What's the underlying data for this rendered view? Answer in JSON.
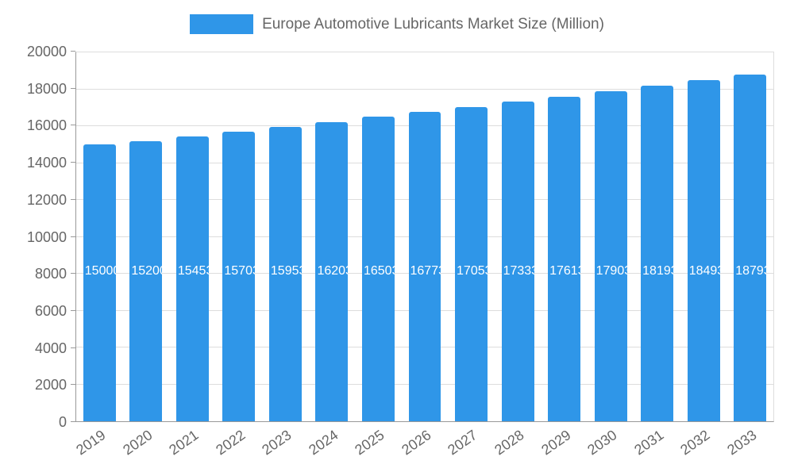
{
  "colors": {
    "bar": "#2F96E8",
    "bar_label": "#FFFFFF",
    "axis_text": "#666666",
    "axis_line": "#999999",
    "gridline": "#DDDDDD",
    "legend_text": "#666666",
    "background": "#FFFFFF"
  },
  "chart_data": {
    "type": "bar",
    "title": "Europe Automotive Lubricants Market Size (Million)",
    "categories": [
      "2019",
      "2020",
      "2021",
      "2022",
      "2023",
      "2024",
      "2025",
      "2026",
      "2027",
      "2028",
      "2029",
      "2030",
      "2031",
      "2032",
      "2033"
    ],
    "values": [
      15000,
      15200,
      15453,
      15703,
      15953,
      16203,
      16503,
      16773,
      17053,
      17333,
      17613,
      17903,
      18193,
      18493,
      18793
    ],
    "xlabel": "",
    "ylabel": "",
    "ylim": [
      0,
      20000
    ],
    "ytick_step": 2000,
    "grid": true,
    "legend_position": "top",
    "bar_value_labels_visible": true,
    "x_tick_rotation_deg": -35
  }
}
